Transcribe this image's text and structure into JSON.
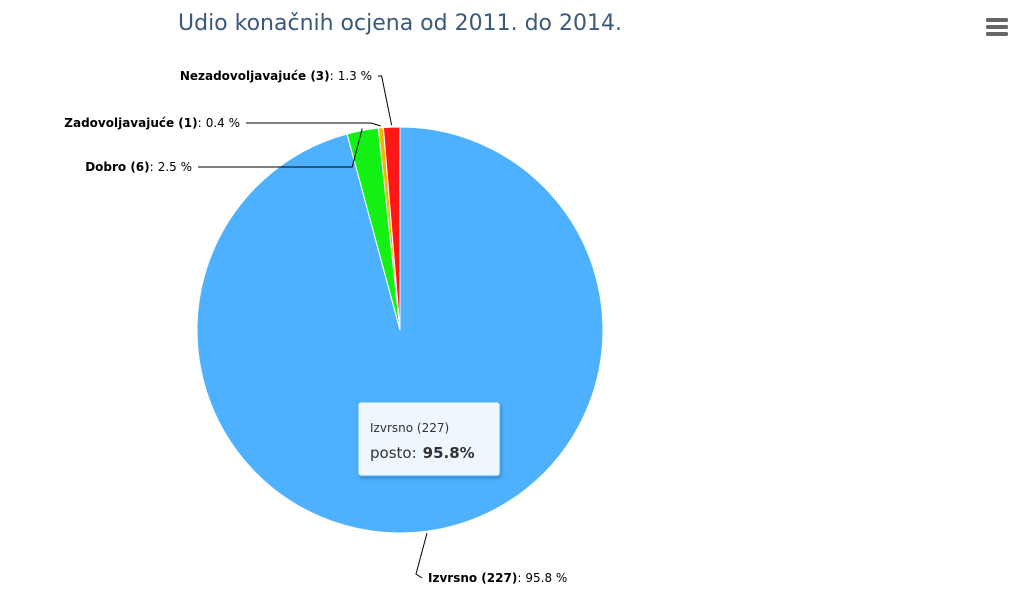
{
  "chart_data": {
    "type": "pie",
    "title": "Udio konačnih ocjena od 2011. do 2014.",
    "categories": [
      "Izvrsno (227)",
      "Dobro (6)",
      "Zadovoljavajuće (1)",
      "Nezadovoljavajuće (3)"
    ],
    "values": [
      95.8,
      2.5,
      0.4,
      1.3
    ],
    "value_labels": [
      "95.8 %",
      "2.5 %",
      "0.4 %",
      "1.3 %"
    ],
    "label_separator": ":",
    "colors": [
      "#4db1ff",
      "#13f013",
      "#f2b705",
      "#ff1717"
    ],
    "tooltip": {
      "label": "posto:",
      "value_label": "95.8%"
    }
  }
}
